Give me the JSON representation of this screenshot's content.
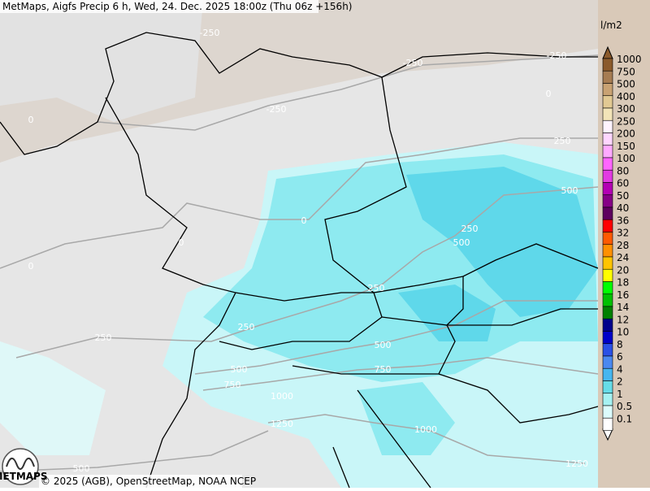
{
  "header": {
    "title": "MetMaps, Aigfs Precip 6 h, Wed, 24. Dec. 2025 18:00z (Thu 06z +156h)"
  },
  "contour_labels": [
    "-250",
    "-250",
    "-250",
    "-250",
    "0",
    "0",
    "250",
    "500",
    "0",
    "0",
    "0",
    "250",
    "500",
    "250",
    "250",
    "250",
    "500",
    "500",
    "750",
    "750",
    "1000",
    "1250",
    "1000",
    "500",
    "1250"
  ],
  "legend": {
    "unit": "l/m2",
    "items": [
      {
        "label": "1000",
        "color": "#8b5a2b"
      },
      {
        "label": "750",
        "color": "#a67c52"
      },
      {
        "label": "500",
        "color": "#c9a273"
      },
      {
        "label": "400",
        "color": "#e2c993"
      },
      {
        "label": "300",
        "color": "#f3e4b8"
      },
      {
        "label": "250",
        "color": "#fff4ff"
      },
      {
        "label": "200",
        "color": "#ffd6ff"
      },
      {
        "label": "150",
        "color": "#ffaaff"
      },
      {
        "label": "100",
        "color": "#ff66ff"
      },
      {
        "label": "80",
        "color": "#e23ae2"
      },
      {
        "label": "60",
        "color": "#b400b4"
      },
      {
        "label": "50",
        "color": "#860086"
      },
      {
        "label": "40",
        "color": "#5e005e"
      },
      {
        "label": "36",
        "color": "#ff0000"
      },
      {
        "label": "32",
        "color": "#ff5a00"
      },
      {
        "label": "28",
        "color": "#ff9000"
      },
      {
        "label": "24",
        "color": "#ffc400"
      },
      {
        "label": "20",
        "color": "#ffff00"
      },
      {
        "label": "18",
        "color": "#00ff00"
      },
      {
        "label": "16",
        "color": "#00c000"
      },
      {
        "label": "14",
        "color": "#008000"
      },
      {
        "label": "12",
        "color": "#00008c"
      },
      {
        "label": "10",
        "color": "#0000c8"
      },
      {
        "label": "8",
        "color": "#2a50e6"
      },
      {
        "label": "6",
        "color": "#4a88f0"
      },
      {
        "label": "4",
        "color": "#46b6f0"
      },
      {
        "label": "2",
        "color": "#66dce8"
      },
      {
        "label": "1",
        "color": "#a6f2f2"
      },
      {
        "label": "0.5",
        "color": "#dcfcfc"
      },
      {
        "label": "0.1",
        "color": "#ffffff"
      }
    ]
  },
  "footer": {
    "copyright": "© 2025 (AGB), OpenStreetMap, NOAA NCEP",
    "logo": "METMAPS"
  }
}
